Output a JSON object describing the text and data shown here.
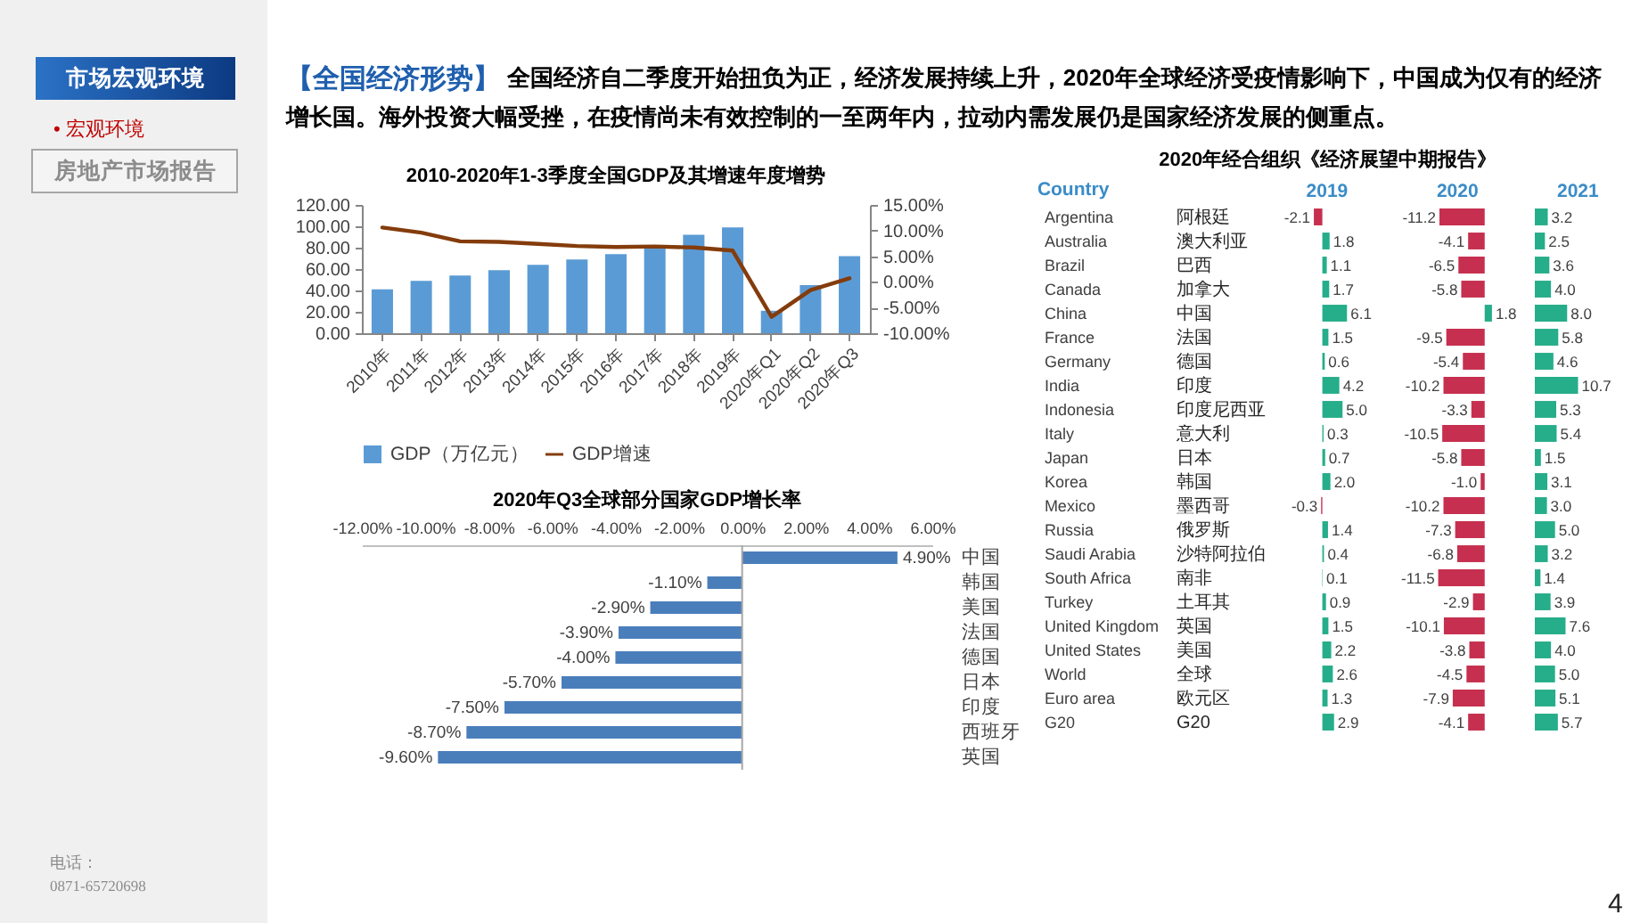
{
  "chart_data": [
    {
      "type": "other",
      "title": "【全国经济形势】",
      "subtitle": "全国经济自二季度开始扭负为正，经济发展持续上升，2020年全球经济受疫情影响下，中国成为仅有的经济增长国。海外投资大幅受挫，在疫情尚未有效控制的一至两年内，拉动内需发展仍是国家经济发展的侧重点。",
      "annotations": [
        "市场宏观环境",
        "• 宏观环境",
        "房地产市场报告",
        "电话：",
        "0871-65720698",
        "4"
      ]
    },
    {
      "type": "bar",
      "title": "2010-2020年1-3季度全国GDP及其增速年度增势",
      "categories": [
        "2010年",
        "2011年",
        "2012年",
        "2013年",
        "2014年",
        "2015年",
        "2016年",
        "2017年",
        "2018年",
        "2019年",
        "2020年Q1",
        "2020年Q2",
        "2020年Q3"
      ],
      "series": [
        {
          "name": "GDP（万亿元）",
          "color": "#5b9bd5",
          "values": [
            41,
            49,
            54,
            59,
            64,
            69,
            74,
            82,
            92,
            99,
            21,
            45,
            72
          ]
        },
        {
          "name": "GDP增速",
          "type": "line",
          "axis": "y2",
          "color": "#843c0c",
          "values": [
            10.6,
            9.6,
            7.9,
            7.8,
            7.4,
            7.0,
            6.8,
            6.9,
            6.7,
            6.1,
            -6.8,
            -1.6,
            0.7
          ]
        }
      ],
      "ylim": [
        0,
        120
      ],
      "yticks": [
        {
          "value": 0,
          "label": "0.00"
        },
        {
          "value": 20,
          "label": "20.00"
        },
        {
          "value": 40,
          "label": "40.00"
        },
        {
          "value": 60,
          "label": "60.00"
        },
        {
          "value": 80,
          "label": "80.00"
        },
        {
          "value": 100,
          "label": "100.00"
        },
        {
          "value": 120,
          "label": "120.00"
        }
      ],
      "y2lim": [
        -10,
        15
      ],
      "y2ticks": [
        {
          "value": -10,
          "label": "-10.00%"
        },
        {
          "value": -5,
          "label": "-5.00%"
        },
        {
          "value": 0,
          "label": "0.00%"
        },
        {
          "value": 5,
          "label": "5.00%"
        },
        {
          "value": 10,
          "label": "10.00%"
        },
        {
          "value": 15,
          "label": "15.00%"
        }
      ],
      "legend": "bottom"
    },
    {
      "type": "bar",
      "orientation": "horizontal",
      "title": "2020年Q3全球部分国家GDP增长率",
      "categories": [
        "中国",
        "韩国",
        "美国",
        "法国",
        "德国",
        "日本",
        "印度",
        "西班牙",
        "英国"
      ],
      "values": [
        4.9,
        -1.1,
        -2.9,
        -3.9,
        -4.0,
        -5.7,
        -7.5,
        -8.7,
        -9.6
      ],
      "value_labels": [
        "4.90%",
        "-1.10%",
        "-2.90%",
        "-3.90%",
        "-4.00%",
        "-5.70%",
        "-7.50%",
        "-8.70%",
        "-9.60%"
      ],
      "color": "#4a7ebb",
      "xlim": [
        -12,
        6
      ],
      "xticks": [
        {
          "value": -12,
          "label": "-12.00%"
        },
        {
          "value": -10,
          "label": "-10.00%"
        },
        {
          "value": -8,
          "label": "-8.00%"
        },
        {
          "value": -6,
          "label": "-6.00%"
        },
        {
          "value": -4,
          "label": "-4.00%"
        },
        {
          "value": -2,
          "label": "-2.00%"
        },
        {
          "value": 0,
          "label": "0.00%"
        },
        {
          "value": 2,
          "label": "2.00%"
        },
        {
          "value": 4,
          "label": "4.00%"
        },
        {
          "value": 6,
          "label": "6.00%"
        }
      ],
      "ref_lines": [
        {
          "axis": "x",
          "value": 0,
          "color": "#a6a6a6"
        }
      ]
    },
    {
      "type": "bar",
      "orientation": "horizontal",
      "title": "2020年经合组织《经济展望中期报告》",
      "ylabel": "Country",
      "xlabel": "2019",
      "categories": [
        "Argentina",
        "Australia",
        "Brazil",
        "Canada",
        "China",
        "France",
        "Germany",
        "India",
        "Indonesia",
        "Italy",
        "Japan",
        "Korea",
        "Mexico",
        "Russia",
        "Saudi Arabia",
        "South Africa",
        "Turkey",
        "United Kingdom",
        "United States",
        "World",
        "Euro area",
        "G20"
      ],
      "y2_categories": [
        "阿根廷",
        "澳大利亚",
        "巴西",
        "加拿大",
        "中国",
        "法国",
        "德国",
        "印度",
        "印度尼西亚",
        "意大利",
        "日本",
        "韩国",
        "墨西哥",
        "俄罗斯",
        "沙特阿拉伯",
        "南非",
        "土耳其",
        "英国",
        "美国",
        "全球",
        "欧元区",
        "G20"
      ],
      "values": [
        -2.1,
        1.8,
        1.1,
        1.7,
        6.1,
        1.5,
        0.6,
        4.2,
        5.0,
        0.3,
        0.7,
        2.0,
        -0.3,
        1.4,
        0.4,
        0.1,
        0.9,
        1.5,
        2.2,
        2.6,
        1.3,
        2.9
      ],
      "value_labels": [
        "-2.1",
        "1.8",
        "1.1",
        "1.7",
        "6.1",
        "1.5",
        "0.6",
        "4.2",
        "5.0",
        "0.3",
        "0.7",
        "2.0",
        "-0.3",
        "1.4",
        "0.4",
        "0.1",
        "0.9",
        "1.5",
        "2.2",
        "2.6",
        "1.3",
        "2.9"
      ],
      "colors": [
        "#c62f4f",
        "#26ad8a",
        "#26ad8a",
        "#26ad8a",
        "#26ad8a",
        "#26ad8a",
        "#26ad8a",
        "#26ad8a",
        "#26ad8a",
        "#26ad8a",
        "#26ad8a",
        "#26ad8a",
        "#c62f4f",
        "#26ad8a",
        "#26ad8a",
        "#26ad8a",
        "#26ad8a",
        "#26ad8a",
        "#26ad8a",
        "#26ad8a",
        "#26ad8a",
        "#26ad8a"
      ],
      "tick_labels": "y"
    },
    {
      "type": "bar",
      "orientation": "horizontal",
      "xlabel": "2020",
      "categories": [
        "Argentina",
        "Australia",
        "Brazil",
        "Canada",
        "China",
        "France",
        "Germany",
        "India",
        "Indonesia",
        "Italy",
        "Japan",
        "Korea",
        "Mexico",
        "Russia",
        "Saudi Arabia",
        "South Africa",
        "Turkey",
        "United Kingdom",
        "United States",
        "World",
        "Euro area",
        "G20"
      ],
      "values": [
        -11.2,
        -4.1,
        -6.5,
        -5.8,
        1.8,
        -9.5,
        -5.4,
        -10.2,
        -3.3,
        -10.5,
        -5.8,
        -1.0,
        -10.2,
        -7.3,
        -6.8,
        -11.5,
        -2.9,
        -10.1,
        -3.8,
        -4.5,
        -7.9,
        -4.1
      ],
      "value_labels": [
        "-11.2",
        "-4.1",
        "-6.5",
        "-5.8",
        "1.8",
        "-9.5",
        "-5.4",
        "-10.2",
        "-3.3",
        "-10.5",
        "-5.8",
        "-1.0",
        "-10.2",
        "-7.3",
        "-6.8",
        "-11.5",
        "-2.9",
        "-10.1",
        "-3.8",
        "-4.5",
        "-7.9",
        "-4.1"
      ],
      "colors": [
        "#c62f4f",
        "#c62f4f",
        "#c62f4f",
        "#c62f4f",
        "#26ad8a",
        "#c62f4f",
        "#c62f4f",
        "#c62f4f",
        "#c62f4f",
        "#c62f4f",
        "#c62f4f",
        "#c62f4f",
        "#c62f4f",
        "#c62f4f",
        "#c62f4f",
        "#c62f4f",
        "#c62f4f",
        "#c62f4f",
        "#c62f4f",
        "#c62f4f",
        "#c62f4f",
        "#c62f4f"
      ],
      "tick_labels": false
    },
    {
      "type": "bar",
      "orientation": "horizontal",
      "xlabel": "2021",
      "categories": [
        "Argentina",
        "Australia",
        "Brazil",
        "Canada",
        "China",
        "France",
        "Germany",
        "India",
        "Indonesia",
        "Italy",
        "Japan",
        "Korea",
        "Mexico",
        "Russia",
        "Saudi Arabia",
        "South Africa",
        "Turkey",
        "United Kingdom",
        "United States",
        "World",
        "Euro area",
        "G20"
      ],
      "values": [
        3.2,
        2.5,
        3.6,
        4.0,
        8.0,
        5.8,
        4.6,
        10.7,
        5.3,
        5.4,
        1.5,
        3.1,
        3.0,
        5.0,
        3.2,
        1.4,
        3.9,
        7.6,
        4.0,
        5.0,
        5.1,
        5.7
      ],
      "value_labels": [
        "3.2",
        "2.5",
        "3.6",
        "4.0",
        "8.0",
        "5.8",
        "4.6",
        "10.7",
        "5.3",
        "5.4",
        "1.5",
        "3.1",
        "3.0",
        "5.0",
        "3.2",
        "1.4",
        "3.9",
        "7.6",
        "4.0",
        "5.0",
        "5.1",
        "5.7"
      ],
      "colors": [
        "#26ad8a",
        "#26ad8a",
        "#26ad8a",
        "#26ad8a",
        "#26ad8a",
        "#26ad8a",
        "#26ad8a",
        "#26ad8a",
        "#26ad8a",
        "#26ad8a",
        "#26ad8a",
        "#26ad8a",
        "#26ad8a",
        "#26ad8a",
        "#26ad8a",
        "#26ad8a",
        "#26ad8a",
        "#26ad8a",
        "#26ad8a",
        "#26ad8a",
        "#26ad8a",
        "#26ad8a"
      ],
      "tick_labels": false
    }
  ]
}
